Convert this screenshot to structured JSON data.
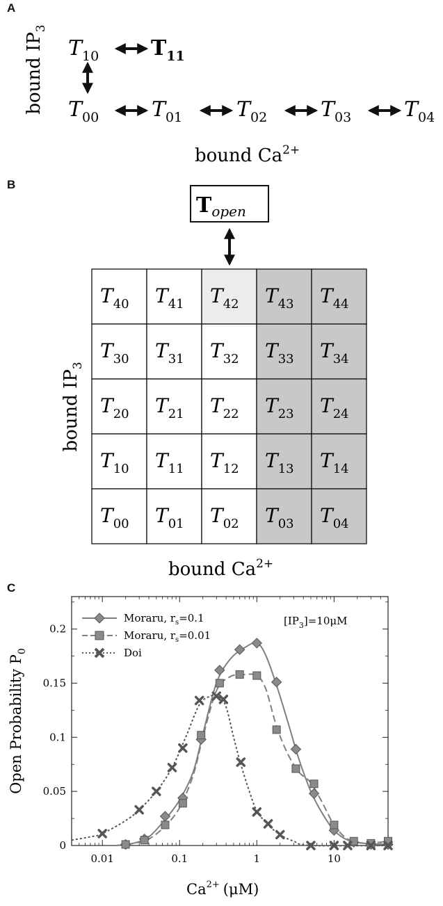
{
  "panels": {
    "a": "A",
    "b": "B",
    "c": "C"
  },
  "panel_a": {
    "ylabel": "bound IP",
    "ylabel_sub": "3",
    "xlabel": "bound Ca",
    "xlabel_sup": "2+",
    "top_row": [
      {
        "t": "T",
        "sub": "10",
        "bold": false
      },
      {
        "t": "T",
        "sub": "11",
        "bold": true
      }
    ],
    "bottom_row": [
      {
        "t": "T",
        "sub": "00"
      },
      {
        "t": "T",
        "sub": "01"
      },
      {
        "t": "T",
        "sub": "02"
      },
      {
        "t": "T",
        "sub": "03"
      },
      {
        "t": "T",
        "sub": "04"
      }
    ]
  },
  "panel_b": {
    "open_state": {
      "t": "T",
      "sub": "open"
    },
    "ylabel": "bound IP",
    "ylabel_sub": "3",
    "xlabel": "bound Ca",
    "xlabel_sup": "2+",
    "grid": [
      [
        "40",
        "41",
        "42",
        "43",
        "44"
      ],
      [
        "30",
        "31",
        "32",
        "33",
        "34"
      ],
      [
        "20",
        "21",
        "22",
        "23",
        "24"
      ],
      [
        "10",
        "11",
        "12",
        "13",
        "14"
      ],
      [
        "00",
        "01",
        "02",
        "03",
        "04"
      ]
    ],
    "colors": {
      "light": "#ececec",
      "dark": "#c8c8c8",
      "white": "#ffffff"
    }
  },
  "chart_data": {
    "type": "line",
    "xscale": "log",
    "xlim": [
      0.004,
      50
    ],
    "ylim": [
      0,
      0.23
    ],
    "xlabel": "Ca",
    "xlabel_sup": "2+",
    "xlabel_unit": "(μM)",
    "ylabel": "Open Probability P",
    "ylabel_sub": "0",
    "xticks": [
      0.01,
      0.1,
      1,
      10
    ],
    "xtick_labels": [
      "0.01",
      "0.1",
      "1",
      "10"
    ],
    "yticks": [
      0,
      0.05,
      0.1,
      0.15,
      0.2
    ],
    "ytick_labels": [
      "0",
      "0.05",
      "0.1",
      "0.15",
      "0.2"
    ],
    "annotation": "[IP",
    "annotation_sub": "3",
    "annotation_rest": "]=10μM",
    "legend_position": "top-left",
    "series": [
      {
        "name": "Moraru, r",
        "name_sub": "s",
        "name_rest": "=0.1",
        "marker": "diamond",
        "line": "solid",
        "color": "#7f7f7f",
        "points": [
          [
            0.02,
            0.001
          ],
          [
            0.035,
            0.006
          ],
          [
            0.065,
            0.027
          ],
          [
            0.11,
            0.044
          ],
          [
            0.19,
            0.098
          ],
          [
            0.33,
            0.162
          ],
          [
            0.6,
            0.181
          ],
          [
            1.0,
            0.187
          ],
          [
            1.8,
            0.151
          ],
          [
            3.2,
            0.089
          ],
          [
            5.5,
            0.048
          ],
          [
            10,
            0.014
          ],
          [
            18,
            0.003
          ],
          [
            30,
            0.001
          ],
          [
            50,
            0.001
          ]
        ],
        "curve": [
          [
            0.015,
            0.0
          ],
          [
            0.025,
            0.002
          ],
          [
            0.04,
            0.008
          ],
          [
            0.065,
            0.024
          ],
          [
            0.1,
            0.042
          ],
          [
            0.15,
            0.068
          ],
          [
            0.2,
            0.103
          ],
          [
            0.3,
            0.15
          ],
          [
            0.45,
            0.172
          ],
          [
            0.7,
            0.183
          ],
          [
            1.0,
            0.187
          ],
          [
            1.3,
            0.176
          ],
          [
            1.8,
            0.148
          ],
          [
            2.5,
            0.115
          ],
          [
            3.5,
            0.08
          ],
          [
            5,
            0.05
          ],
          [
            7,
            0.03
          ],
          [
            10,
            0.014
          ],
          [
            15,
            0.005
          ],
          [
            25,
            0.002
          ],
          [
            50,
            0.001
          ]
        ]
      },
      {
        "name": "Moraru, r",
        "name_sub": "s",
        "name_rest": "=0.01",
        "marker": "square",
        "line": "dashed",
        "color": "#7f7f7f",
        "points": [
          [
            0.02,
            0.001
          ],
          [
            0.035,
            0.005
          ],
          [
            0.065,
            0.019
          ],
          [
            0.11,
            0.039
          ],
          [
            0.19,
            0.102
          ],
          [
            0.33,
            0.15
          ],
          [
            0.6,
            0.158
          ],
          [
            1.0,
            0.157
          ],
          [
            1.8,
            0.107
          ],
          [
            3.2,
            0.071
          ],
          [
            5.5,
            0.057
          ],
          [
            10,
            0.019
          ],
          [
            18,
            0.004
          ],
          [
            30,
            0.002
          ],
          [
            50,
            0.004
          ]
        ],
        "curve": [
          [
            0.015,
            0.0
          ],
          [
            0.025,
            0.002
          ],
          [
            0.04,
            0.006
          ],
          [
            0.065,
            0.018
          ],
          [
            0.1,
            0.035
          ],
          [
            0.15,
            0.065
          ],
          [
            0.2,
            0.1
          ],
          [
            0.3,
            0.143
          ],
          [
            0.45,
            0.156
          ],
          [
            0.7,
            0.158
          ],
          [
            1.0,
            0.157
          ],
          [
            1.3,
            0.145
          ],
          [
            1.8,
            0.11
          ],
          [
            2.5,
            0.085
          ],
          [
            3.5,
            0.068
          ],
          [
            5,
            0.058
          ],
          [
            7,
            0.04
          ],
          [
            10,
            0.019
          ],
          [
            15,
            0.006
          ],
          [
            25,
            0.002
          ],
          [
            50,
            0.004
          ]
        ]
      },
      {
        "name": "Doi",
        "marker": "x",
        "line": "dotted",
        "color": "#555555",
        "points": [
          [
            0.01,
            0.011
          ],
          [
            0.03,
            0.033
          ],
          [
            0.05,
            0.05
          ],
          [
            0.08,
            0.072
          ],
          [
            0.11,
            0.09
          ],
          [
            0.18,
            0.134
          ],
          [
            0.3,
            0.138
          ],
          [
            0.37,
            0.135
          ],
          [
            0.62,
            0.077
          ],
          [
            1.0,
            0.031
          ],
          [
            1.4,
            0.02
          ],
          [
            2.0,
            0.01
          ],
          [
            5.0,
            0.0
          ],
          [
            10,
            0.0
          ],
          [
            15,
            0.0
          ],
          [
            30,
            0.0
          ],
          [
            50,
            0.0
          ]
        ],
        "curve": [
          [
            0.004,
            0.005
          ],
          [
            0.007,
            0.008
          ],
          [
            0.01,
            0.011
          ],
          [
            0.02,
            0.023
          ],
          [
            0.03,
            0.033
          ],
          [
            0.05,
            0.05
          ],
          [
            0.08,
            0.072
          ],
          [
            0.12,
            0.1
          ],
          [
            0.18,
            0.13
          ],
          [
            0.25,
            0.138
          ],
          [
            0.32,
            0.138
          ],
          [
            0.4,
            0.128
          ],
          [
            0.5,
            0.1
          ],
          [
            0.62,
            0.075
          ],
          [
            0.8,
            0.05
          ],
          [
            1.0,
            0.032
          ],
          [
            1.4,
            0.019
          ],
          [
            2.0,
            0.01
          ],
          [
            3,
            0.004
          ],
          [
            5,
            0.0
          ],
          [
            50,
            0.0
          ]
        ]
      }
    ]
  }
}
